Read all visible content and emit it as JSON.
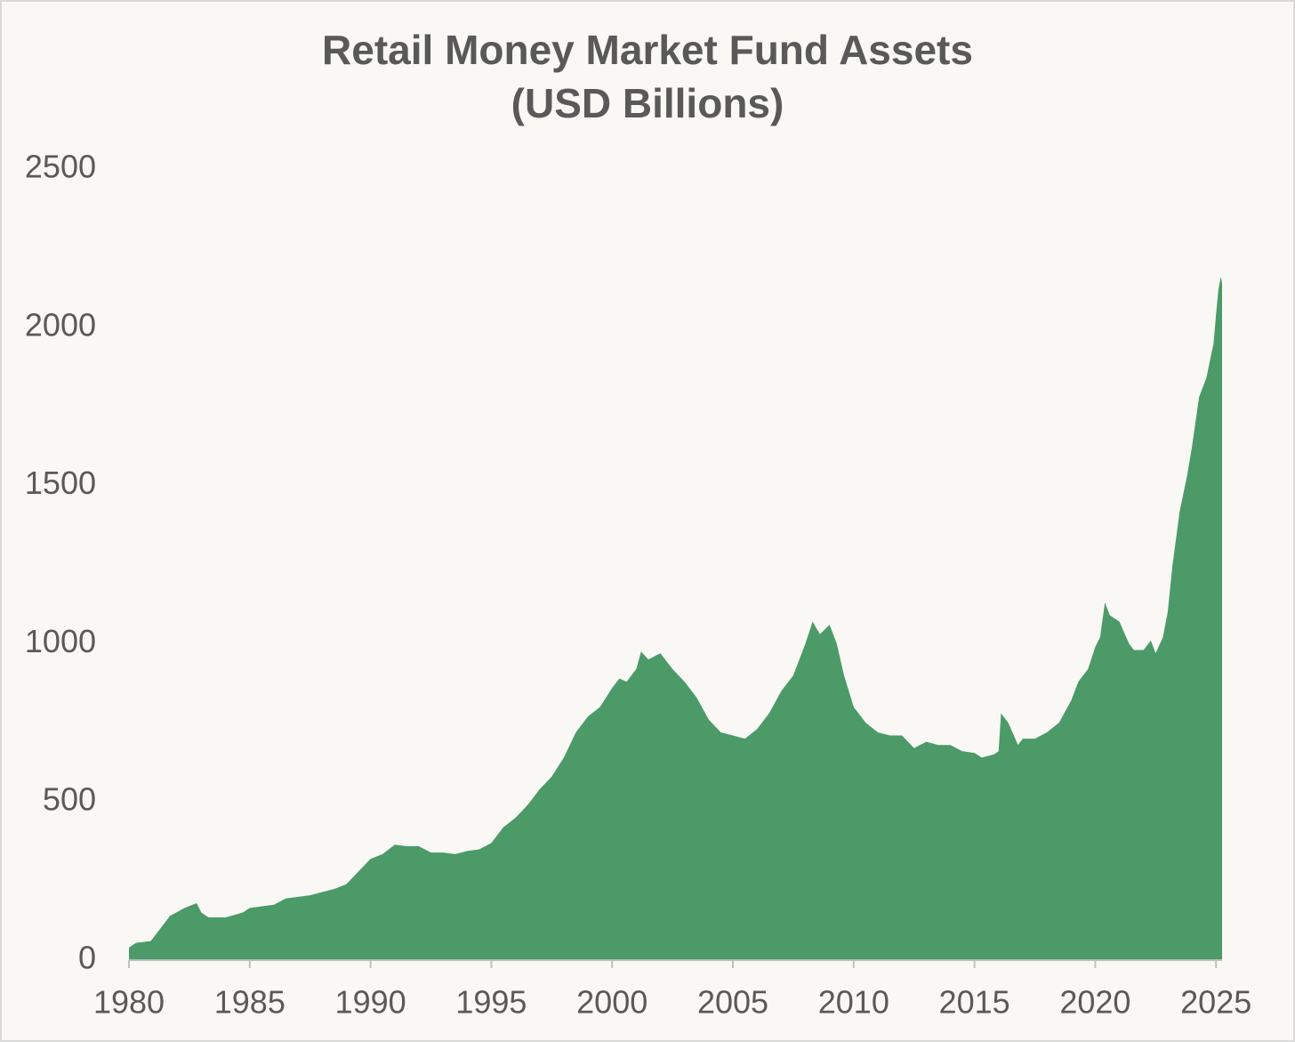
{
  "chart_data": {
    "type": "area",
    "title": "Retail Money Market Fund Assets",
    "subtitle": "(USD Billions)",
    "color": "#4b9a68",
    "x": [
      1980.0,
      1980.3,
      1980.9,
      1981.2,
      1981.7,
      1982.3,
      1982.8,
      1983.0,
      1983.3,
      1984.0,
      1984.7,
      1985.0,
      1985.5,
      1986.0,
      1986.5,
      1987.0,
      1987.5,
      1988.0,
      1988.5,
      1989.0,
      1989.5,
      1990.0,
      1990.5,
      1991.0,
      1991.5,
      1992.0,
      1992.5,
      1993.0,
      1993.5,
      1994.0,
      1994.5,
      1995.0,
      1995.5,
      1996.0,
      1996.5,
      1997.0,
      1997.5,
      1998.0,
      1998.5,
      1999.0,
      1999.5,
      2000.0,
      2000.3,
      2000.6,
      2001.0,
      2001.2,
      2001.5,
      2002.0,
      2002.5,
      2003.0,
      2003.5,
      2004.0,
      2004.5,
      2005.0,
      2005.5,
      2006.0,
      2006.5,
      2007.0,
      2007.5,
      2008.0,
      2008.3,
      2008.6,
      2009.0,
      2009.3,
      2009.6,
      2010.0,
      2010.5,
      2011.0,
      2011.5,
      2012.0,
      2012.5,
      2013.0,
      2013.5,
      2014.0,
      2014.5,
      2015.0,
      2015.3,
      2015.8,
      2016.0,
      2016.1,
      2016.4,
      2016.8,
      2017.0,
      2017.5,
      2018.0,
      2018.5,
      2019.0,
      2019.3,
      2019.7,
      2020.0,
      2020.2,
      2020.4,
      2020.6,
      2021.0,
      2021.4,
      2021.6,
      2022.0,
      2022.3,
      2022.5,
      2022.8,
      2023.0,
      2023.2,
      2023.5,
      2023.8,
      2024.0,
      2024.3,
      2024.6,
      2024.9,
      2025.0,
      2025.1,
      2025.2,
      2025.25
    ],
    "values": [
      40,
      55,
      60,
      90,
      140,
      165,
      180,
      150,
      135,
      135,
      150,
      165,
      170,
      175,
      195,
      200,
      205,
      215,
      225,
      240,
      280,
      320,
      335,
      365,
      360,
      360,
      340,
      340,
      335,
      345,
      350,
      370,
      420,
      450,
      490,
      540,
      580,
      640,
      720,
      770,
      800,
      860,
      890,
      880,
      920,
      975,
      950,
      970,
      920,
      880,
      830,
      760,
      720,
      710,
      700,
      730,
      780,
      850,
      900,
      1000,
      1070,
      1030,
      1060,
      1000,
      900,
      800,
      750,
      720,
      710,
      710,
      670,
      690,
      680,
      680,
      660,
      655,
      640,
      650,
      660,
      780,
      750,
      680,
      700,
      700,
      720,
      750,
      820,
      880,
      920,
      990,
      1020,
      1130,
      1090,
      1070,
      1000,
      980,
      980,
      1010,
      970,
      1020,
      1100,
      1250,
      1420,
      1530,
      1620,
      1780,
      1840,
      1950,
      2040,
      2120,
      2160,
      2140
    ],
    "xlim": [
      1980,
      2025.25
    ],
    "xticks": [
      1980,
      1985,
      1990,
      1995,
      2000,
      2005,
      2010,
      2015,
      2020,
      2025
    ],
    "ylim": [
      0,
      2500
    ],
    "yticks": [
      0,
      500,
      1000,
      1500,
      2000,
      2500
    ],
    "grid": false
  }
}
